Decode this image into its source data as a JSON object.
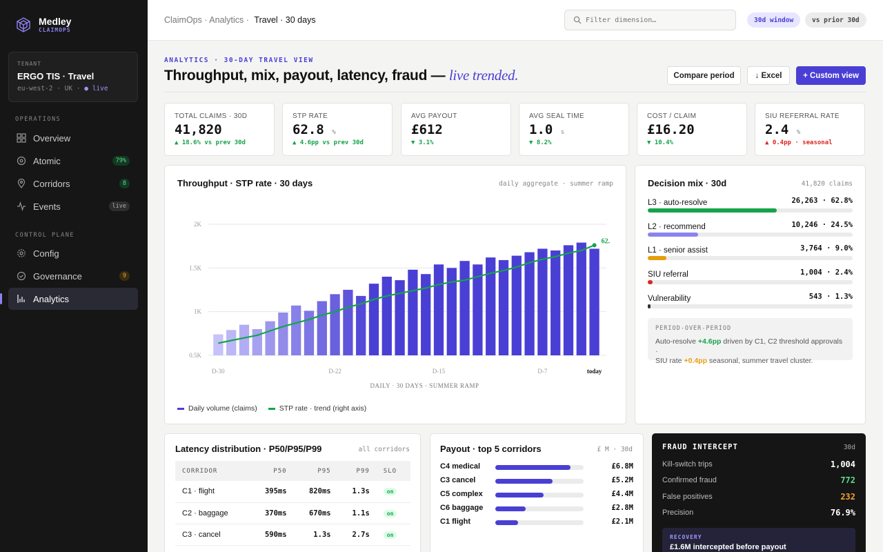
{
  "brand": {
    "name": "Medley",
    "sub": "CLAIMOPS"
  },
  "tenant": {
    "label": "TENANT",
    "name": "ERGO TIS · Travel",
    "region": "eu-west-2 · UK · ",
    "status": "live"
  },
  "nav": {
    "operations_label": "OPERATIONS",
    "control_label": "CONTROL PLANE",
    "items": [
      {
        "label": "Overview",
        "badge": ""
      },
      {
        "label": "Atomic",
        "badge": "79%"
      },
      {
        "label": "Corridors",
        "badge": "8"
      },
      {
        "label": "Events",
        "badge": "live"
      },
      {
        "label": "Config",
        "badge": ""
      },
      {
        "label": "Governance",
        "badge": "9"
      },
      {
        "label": "Analytics",
        "badge": ""
      }
    ]
  },
  "topbar": {
    "crumb": "ClaimOps · Analytics · ",
    "crumb_current": "Travel · 30 days",
    "search_placeholder": "Filter dimension…",
    "pill_window": "30d window",
    "pill_compare": "vs prior 30d"
  },
  "header": {
    "eyebrow": "ANALYTICS · 30-DAY TRAVEL VIEW",
    "title": "Throughput, mix, payout, latency, fraud — ",
    "title_italic": "live trended.",
    "btn_compare": "Compare period",
    "btn_excel": "↓ Excel",
    "btn_custom": "+ Custom view"
  },
  "kpis": [
    {
      "label": "TOTAL CLAIMS · 30D",
      "value": "41,820",
      "unit": "",
      "delta": "▲ 18.6% vs prev 30d",
      "tone": "pos"
    },
    {
      "label": "STP RATE",
      "value": "62.8",
      "unit": "%",
      "delta": "▲ 4.6pp vs prev 30d",
      "tone": "pos"
    },
    {
      "label": "AVG PAYOUT",
      "value": "£612",
      "unit": "",
      "delta": "▼ 3.1%",
      "tone": "pos"
    },
    {
      "label": "AVG SEAL TIME",
      "value": "1.0",
      "unit": "s",
      "delta": "▼ 8.2%",
      "tone": "pos"
    },
    {
      "label": "COST / CLAIM",
      "value": "£16.20",
      "unit": "",
      "delta": "▼ 10.4%",
      "tone": "pos"
    },
    {
      "label": "SIU REFERRAL RATE",
      "value": "2.4",
      "unit": "%",
      "delta": "▲ 0.4pp · seasonal",
      "tone": "neg"
    }
  ],
  "throughput": {
    "title": "Throughput · STP rate · 30 days",
    "meta": "daily aggregate · summer ramp",
    "legend_bars": "Daily volume (claims)",
    "legend_line": "STP rate · trend (right axis)"
  },
  "chart_data": {
    "type": "bar",
    "xlabel": "DAILY · 30 DAYS · SUMMER RAMP",
    "ylabel": "",
    "ylim": [
      500,
      2000
    ],
    "yticks": [
      "2K",
      "1.5K",
      "1K",
      "0.5K"
    ],
    "ytick_values": [
      2000,
      1500,
      1000,
      500
    ],
    "xticks": [
      "D-30",
      "D-22",
      "D-15",
      "D-7",
      "today"
    ],
    "xtick_index": [
      0,
      9,
      17,
      25,
      29
    ],
    "series": [
      {
        "name": "Daily volume (claims)",
        "type": "bar",
        "values": [
          740,
          790,
          850,
          800,
          890,
          990,
          1070,
          1010,
          1120,
          1200,
          1250,
          1180,
          1320,
          1400,
          1360,
          1480,
          1430,
          1540,
          1500,
          1580,
          1540,
          1620,
          1590,
          1640,
          1680,
          1720,
          1700,
          1760,
          1790,
          1720
        ]
      },
      {
        "name": "STP rate · trend (right axis)",
        "type": "line",
        "values": [
          640,
          670,
          700,
          730,
          780,
          830,
          870,
          910,
          960,
          1000,
          1050,
          1090,
          1140,
          1180,
          1210,
          1240,
          1270,
          1310,
          1340,
          1360,
          1400,
          1440,
          1470,
          1510,
          1560,
          1600,
          1630,
          1670,
          1700,
          1760
        ],
        "end_label": "62."
      }
    ]
  },
  "mix": {
    "title": "Decision mix · 30d",
    "meta": "41,820 claims",
    "rows": [
      {
        "label": "L3 · auto-resolve",
        "value": "26,263 · 62.8%",
        "share": 0.628,
        "color": "#16a34a"
      },
      {
        "label": "L2 · recommend",
        "value": "10,246 · 24.5%",
        "share": 0.245,
        "color": "#8b83f0"
      },
      {
        "label": "L1 · senior assist",
        "value": "3,764 · 9.0%",
        "share": 0.09,
        "color": "#e59e0b"
      },
      {
        "label": "SIU referral",
        "value": "1,004 · 2.4%",
        "share": 0.024,
        "color": "#dc2626"
      },
      {
        "label": "Vulnerability",
        "value": "543 · 1.3%",
        "share": 0.013,
        "color": "#333333"
      }
    ],
    "pop_label": "PERIOD-OVER-PERIOD",
    "pop_line1_a": "Auto-resolve ",
    "pop_line1_b": "+4.6pp",
    "pop_line1_c": " driven by C1, C2 threshold approvals ·",
    "pop_line2_a": "SIU rate ",
    "pop_line2_b": "+0.4pp",
    "pop_line2_c": " seasonal, summer travel cluster."
  },
  "latency": {
    "title": "Latency distribution · P50/P95/P99",
    "meta": "all corridors",
    "headers": [
      "CORRIDOR",
      "P50",
      "P95",
      "P99",
      "SLO"
    ],
    "rows": [
      {
        "corridor": "C1 · flight",
        "p50": "395ms",
        "p95": "820ms",
        "p99": "1.3s",
        "slo": "on"
      },
      {
        "corridor": "C2 · baggage",
        "p50": "370ms",
        "p95": "670ms",
        "p99": "1.1s",
        "slo": "on"
      },
      {
        "corridor": "C3 · cancel",
        "p50": "590ms",
        "p95": "1.3s",
        "p99": "2.7s",
        "slo": "on"
      }
    ]
  },
  "payout": {
    "title": "Payout · top 5 corridors",
    "meta": "£ M · 30d",
    "rows": [
      {
        "label": "C4 medical",
        "value": "£6.8M",
        "share": 0.85
      },
      {
        "label": "C3 cancel",
        "value": "£5.2M",
        "share": 0.65
      },
      {
        "label": "C5 complex",
        "value": "£4.4M",
        "share": 0.55
      },
      {
        "label": "C6 baggage",
        "value": "£2.8M",
        "share": 0.34
      },
      {
        "label": "C1 flight",
        "value": "£2.1M",
        "share": 0.26
      }
    ]
  },
  "fraud": {
    "title": "FRAUD INTERCEPT",
    "meta": "30d",
    "rows": [
      {
        "label": "Kill-switch trips",
        "value": "1,004",
        "color": "#ffffff"
      },
      {
        "label": "Confirmed fraud",
        "value": "772",
        "color": "#5fd88a"
      },
      {
        "label": "False positives",
        "value": "232",
        "color": "#f0a030"
      },
      {
        "label": "Precision",
        "value": "76.9%",
        "color": "#ffffff"
      }
    ],
    "recovery_label": "RECOVERY",
    "recovery_text": "£1.6M intercepted before payout"
  }
}
